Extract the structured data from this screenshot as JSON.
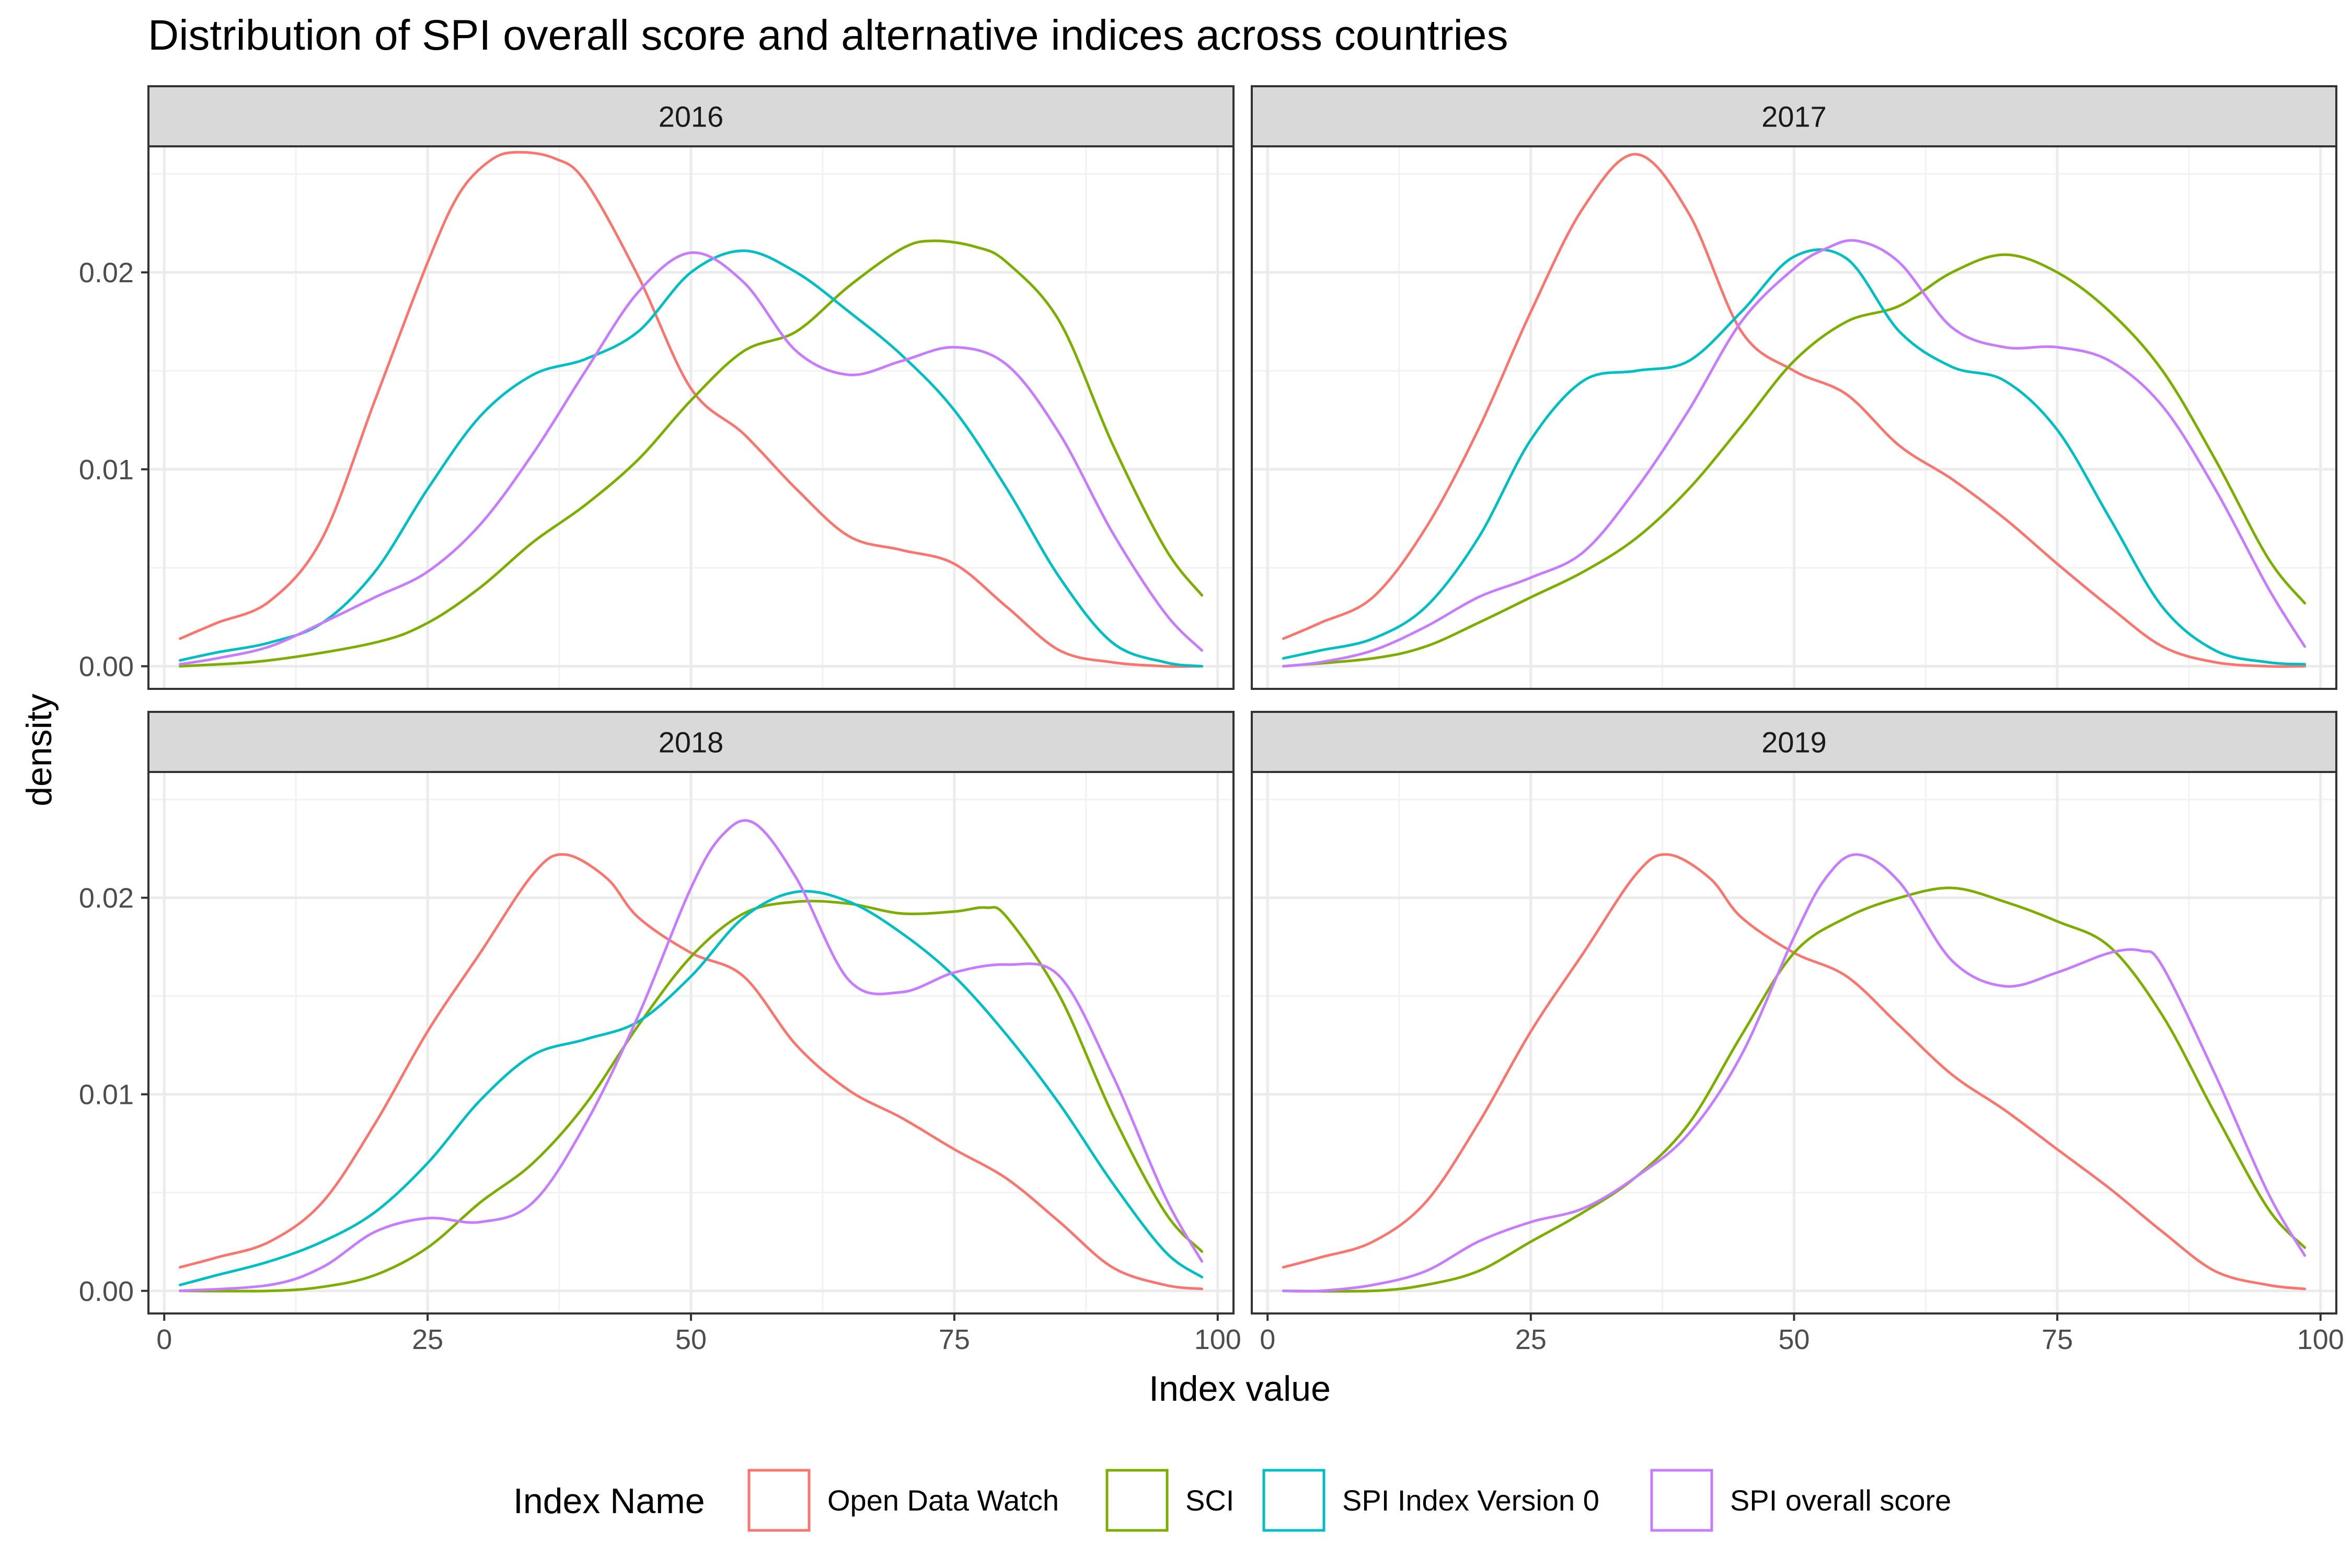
{
  "title": "Distribution of SPI overall score and alternative indices across countries",
  "xlabel": "Index value",
  "ylabel": "density",
  "legend": {
    "title": "Index Name",
    "entries": [
      {
        "label": "Open Data Watch",
        "color": "#F8766D"
      },
      {
        "label": "SCI",
        "color": "#7CAE00"
      },
      {
        "label": "SPI Index Version 0",
        "color": "#00BFC4"
      },
      {
        "label": "SPI overall score",
        "color": "#C77CFF"
      }
    ]
  },
  "chart_data": {
    "type": "line",
    "facets": [
      "2016",
      "2017",
      "2018",
      "2019"
    ],
    "xlim": [
      -1.5,
      101.5
    ],
    "ylim": [
      -0.00115,
      0.0264
    ],
    "x_ticks": [
      0,
      25,
      50,
      75,
      100
    ],
    "y_ticks": [
      0.0,
      0.01,
      0.02
    ],
    "y_tick_labels": [
      "0.00",
      "0.01",
      "0.02"
    ],
    "x_tick_labels": [
      "0",
      "25",
      "50",
      "75",
      "100"
    ],
    "grid": true,
    "legend_position": "bottom",
    "panels": [
      {
        "facet": "2016",
        "series": [
          {
            "name": "Open Data Watch",
            "color": "#F8766D",
            "x": [
              1.5,
              5,
              10,
              15,
              20,
              25,
              28,
              31,
              33.5,
              37,
              40,
              45,
              50,
              55,
              60,
              65,
              70,
              75,
              80,
              85,
              90,
              95,
              98.5
            ],
            "y": [
              0.0014,
              0.0022,
              0.0033,
              0.0065,
              0.0135,
              0.0205,
              0.024,
              0.0257,
              0.0261,
              0.0258,
              0.0246,
              0.0198,
              0.0141,
              0.0118,
              0.009,
              0.0066,
              0.0059,
              0.0052,
              0.003,
              0.0008,
              0.0002,
              0.0,
              0.0
            ]
          },
          {
            "name": "SCI",
            "color": "#7CAE00",
            "x": [
              1.5,
              10,
              20,
              25,
              30,
              35,
              40,
              45,
              50,
              55,
              60,
              65,
              70,
              73,
              77,
              80,
              85,
              90,
              95,
              98.5
            ],
            "y": [
              0.0,
              0.0003,
              0.0012,
              0.0022,
              0.004,
              0.0063,
              0.0082,
              0.0105,
              0.0135,
              0.016,
              0.017,
              0.0193,
              0.0212,
              0.0216,
              0.0213,
              0.0205,
              0.0175,
              0.0113,
              0.006,
              0.0036
            ]
          },
          {
            "name": "SPI Index Version 0",
            "color": "#00BFC4",
            "x": [
              1.5,
              5,
              10,
              15,
              20,
              25,
              30,
              35,
              40,
              45,
              50,
              55,
              60,
              65,
              70,
              75,
              80,
              85,
              90,
              95,
              98.5
            ],
            "y": [
              0.0003,
              0.0007,
              0.0012,
              0.0022,
              0.0048,
              0.009,
              0.0127,
              0.0148,
              0.0156,
              0.017,
              0.02,
              0.0211,
              0.02,
              0.018,
              0.0158,
              0.013,
              0.009,
              0.0045,
              0.0012,
              0.0002,
              0.0
            ]
          },
          {
            "name": "SPI overall score",
            "color": "#C77CFF",
            "x": [
              1.5,
              5,
              10,
              15,
              20,
              25,
              30,
              35,
              40,
              45,
              50,
              55,
              60,
              65,
              70,
              75,
              80,
              85,
              90,
              95,
              98.5
            ],
            "y": [
              0.0001,
              0.0004,
              0.001,
              0.0022,
              0.0035,
              0.0048,
              0.0072,
              0.0108,
              0.015,
              0.019,
              0.021,
              0.0195,
              0.016,
              0.0148,
              0.0155,
              0.0162,
              0.0153,
              0.0118,
              0.0068,
              0.0027,
              0.0008
            ]
          }
        ]
      },
      {
        "facet": "2017",
        "series": [
          {
            "name": "Open Data Watch",
            "color": "#F8766D",
            "x": [
              1.5,
              5,
              10,
              15,
              20,
              25,
              30,
              35,
              40,
              45,
              50,
              55,
              60,
              65,
              70,
              75,
              80,
              85,
              90,
              95,
              98.5
            ],
            "y": [
              0.0014,
              0.0022,
              0.0035,
              0.007,
              0.012,
              0.018,
              0.0233,
              0.026,
              0.023,
              0.017,
              0.015,
              0.0138,
              0.0112,
              0.0095,
              0.0075,
              0.0052,
              0.003,
              0.001,
              0.0002,
              0.0,
              0.0
            ]
          },
          {
            "name": "SCI",
            "color": "#7CAE00",
            "x": [
              1.5,
              10,
              15,
              20,
              25,
              30,
              35,
              40,
              45,
              50,
              55,
              60,
              65,
              70,
              75,
              80,
              85,
              90,
              95,
              98.5
            ],
            "y": [
              0.0,
              0.0004,
              0.001,
              0.0022,
              0.0035,
              0.0048,
              0.0065,
              0.009,
              0.0122,
              0.0155,
              0.0175,
              0.0183,
              0.02,
              0.0209,
              0.02,
              0.018,
              0.015,
              0.0105,
              0.0055,
              0.0032
            ]
          },
          {
            "name": "SPI Index Version 0",
            "color": "#00BFC4",
            "x": [
              1.5,
              5,
              10,
              15,
              20,
              25,
              30,
              35,
              40,
              45,
              50,
              55,
              60,
              65,
              70,
              75,
              80,
              85,
              90,
              95,
              98.5
            ],
            "y": [
              0.0004,
              0.0008,
              0.0014,
              0.003,
              0.0065,
              0.0115,
              0.0145,
              0.015,
              0.0155,
              0.018,
              0.0208,
              0.0207,
              0.017,
              0.0152,
              0.0145,
              0.012,
              0.0075,
              0.003,
              0.0008,
              0.0002,
              0.0001
            ]
          },
          {
            "name": "SPI overall score",
            "color": "#C77CFF",
            "x": [
              1.5,
              5,
              10,
              15,
              20,
              25,
              30,
              35,
              40,
              45,
              50,
              53,
              56,
              60,
              65,
              70,
              75,
              80,
              85,
              90,
              95,
              98.5
            ],
            "y": [
              0.0,
              0.0002,
              0.0008,
              0.002,
              0.0035,
              0.0045,
              0.0058,
              0.009,
              0.013,
              0.0175,
              0.0202,
              0.0212,
              0.0216,
              0.0205,
              0.0172,
              0.0162,
              0.0162,
              0.0155,
              0.0132,
              0.009,
              0.004,
              0.001
            ]
          }
        ]
      },
      {
        "facet": "2018",
        "series": [
          {
            "name": "Open Data Watch",
            "color": "#F8766D",
            "x": [
              1.5,
              5,
              10,
              15,
              20,
              25,
              30,
              35,
              38,
              42,
              45,
              50,
              55,
              60,
              65,
              70,
              75,
              80,
              85,
              90,
              95,
              98.5
            ],
            "y": [
              0.0012,
              0.0017,
              0.0025,
              0.0045,
              0.0085,
              0.0132,
              0.0172,
              0.0212,
              0.0222,
              0.021,
              0.019,
              0.0172,
              0.016,
              0.0125,
              0.0102,
              0.0088,
              0.0072,
              0.0057,
              0.0035,
              0.0012,
              0.0003,
              0.0001
            ]
          },
          {
            "name": "SCI",
            "color": "#7CAE00",
            "x": [
              1.5,
              10,
              15,
              20,
              25,
              30,
              35,
              40,
              45,
              50,
              55,
              60,
              65,
              70,
              75,
              78,
              80,
              85,
              90,
              95,
              98.5
            ],
            "y": [
              0.0,
              0.0,
              0.0002,
              0.0008,
              0.0022,
              0.0045,
              0.0065,
              0.0095,
              0.0135,
              0.017,
              0.0192,
              0.0198,
              0.0197,
              0.0192,
              0.0193,
              0.0195,
              0.019,
              0.015,
              0.009,
              0.004,
              0.002
            ]
          },
          {
            "name": "SPI Index Version 0",
            "color": "#00BFC4",
            "x": [
              1.5,
              5,
              10,
              15,
              20,
              25,
              30,
              35,
              40,
              45,
              50,
              55,
              60,
              65,
              70,
              75,
              80,
              85,
              90,
              95,
              98.5
            ],
            "y": [
              0.0003,
              0.0008,
              0.0015,
              0.0025,
              0.004,
              0.0065,
              0.0097,
              0.012,
              0.0128,
              0.0137,
              0.016,
              0.019,
              0.0203,
              0.0198,
              0.0182,
              0.016,
              0.013,
              0.0095,
              0.0055,
              0.002,
              0.0007
            ]
          },
          {
            "name": "SPI overall score",
            "color": "#C77CFF",
            "x": [
              1.5,
              10,
              15,
              20,
              25,
              30,
              35,
              40,
              45,
              50,
              53,
              56,
              60,
              65,
              70,
              75,
              80,
              85,
              90,
              95,
              98.5
            ],
            "y": [
              0.0,
              0.0003,
              0.0012,
              0.003,
              0.0037,
              0.0035,
              0.0045,
              0.0085,
              0.014,
              0.0205,
              0.0232,
              0.0238,
              0.021,
              0.0158,
              0.0152,
              0.0162,
              0.0166,
              0.016,
              0.011,
              0.0048,
              0.0015
            ]
          }
        ]
      },
      {
        "facet": "2019",
        "series": [
          {
            "name": "Open Data Watch",
            "color": "#F8766D",
            "x": [
              1.5,
              5,
              10,
              15,
              20,
              25,
              30,
              35,
              38,
              42,
              45,
              50,
              55,
              60,
              65,
              70,
              75,
              80,
              85,
              90,
              95,
              98.5
            ],
            "y": [
              0.0012,
              0.0017,
              0.0025,
              0.0045,
              0.0085,
              0.0132,
              0.0172,
              0.0212,
              0.0222,
              0.021,
              0.019,
              0.0172,
              0.016,
              0.0135,
              0.011,
              0.0092,
              0.0072,
              0.0052,
              0.003,
              0.001,
              0.0003,
              0.0001
            ]
          },
          {
            "name": "SCI",
            "color": "#7CAE00",
            "x": [
              1.5,
              10,
              15,
              20,
              25,
              30,
              35,
              40,
              45,
              50,
              55,
              60,
              65,
              70,
              75,
              80,
              85,
              90,
              95,
              98.5
            ],
            "y": [
              0.0,
              0.0,
              0.0003,
              0.001,
              0.0025,
              0.004,
              0.0058,
              0.0085,
              0.013,
              0.0172,
              0.019,
              0.02,
              0.0205,
              0.0198,
              0.0188,
              0.0175,
              0.014,
              0.009,
              0.0042,
              0.0022
            ]
          },
          {
            "name": "SPI overall score",
            "color": "#C77CFF",
            "x": [
              1.5,
              5,
              10,
              15,
              20,
              25,
              30,
              35,
              40,
              45,
              50,
              53,
              56,
              60,
              65,
              70,
              75,
              80,
              83,
              85,
              90,
              95,
              98.5
            ],
            "y": [
              0.0,
              0.0,
              0.0003,
              0.001,
              0.0025,
              0.0035,
              0.0042,
              0.0058,
              0.008,
              0.012,
              0.018,
              0.021,
              0.0222,
              0.0208,
              0.0168,
              0.0155,
              0.0162,
              0.0172,
              0.0173,
              0.0165,
              0.011,
              0.005,
              0.0018
            ]
          }
        ]
      }
    ]
  }
}
